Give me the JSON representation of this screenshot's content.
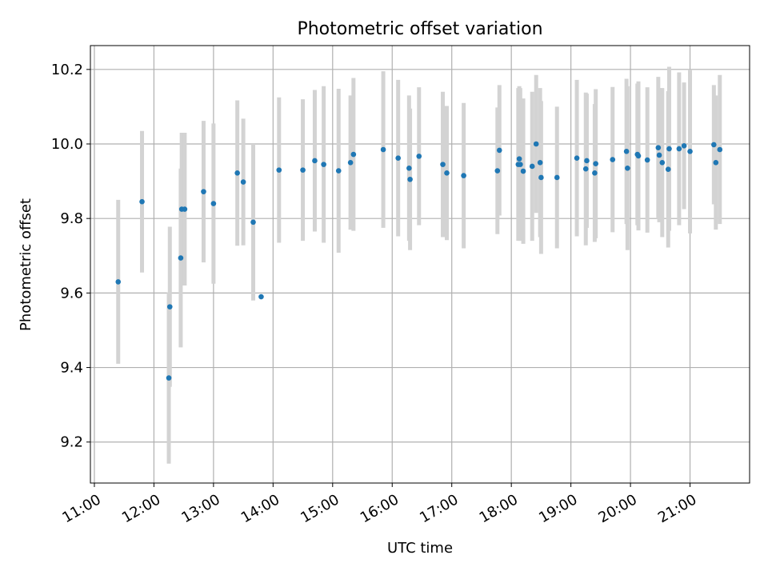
{
  "chart_data": {
    "type": "scatter",
    "title": "Photometric offset variation",
    "xlabel": "UTC time",
    "ylabel": "Photometric offset",
    "x_unit": "hours UTC",
    "xlim": [
      "10:56",
      "22:00"
    ],
    "ylim": [
      9.09,
      10.264
    ],
    "x_ticks": [
      "11:00",
      "12:00",
      "13:00",
      "14:00",
      "15:00",
      "16:00",
      "17:00",
      "18:00",
      "19:00",
      "20:00",
      "21:00"
    ],
    "y_ticks": [
      "9.2",
      "9.4",
      "9.6",
      "9.8",
      "10.0",
      "10.2"
    ],
    "grid": true,
    "legend": "none",
    "colors": {
      "points": "#1f77b4",
      "errorbars": "#d3d3d3",
      "grid": "#b0b0b0"
    },
    "series": [
      {
        "x": [
          "11:24",
          "11:48",
          "12:15",
          "12:16",
          "12:27",
          "12:28",
          "12:31",
          "12:50",
          "13:00",
          "13:24",
          "13:30",
          "13:40",
          "13:48",
          "14:06",
          "14:30",
          "14:42",
          "14:51",
          "15:06",
          "15:18",
          "15:21",
          "15:51",
          "16:06",
          "16:17",
          "16:18",
          "16:27",
          "16:51",
          "16:55",
          "17:12",
          "17:46",
          "17:48",
          "18:07",
          "18:08",
          "18:09",
          "18:12",
          "18:21",
          "18:25",
          "18:29",
          "18:30",
          "18:46",
          "19:06",
          "19:15",
          "19:16",
          "19:24",
          "19:25",
          "19:42",
          "19:56",
          "19:57",
          "20:07",
          "20:08",
          "20:17",
          "20:28",
          "20:29",
          "20:32",
          "20:38",
          "20:39",
          "20:49",
          "20:54",
          "21:00",
          "21:24",
          "21:26",
          "21:30"
        ],
        "y": [
          9.63,
          9.845,
          9.372,
          9.563,
          9.694,
          9.825,
          9.825,
          9.872,
          9.84,
          9.922,
          9.898,
          9.79,
          9.59,
          9.93,
          9.93,
          9.955,
          9.945,
          9.928,
          9.95,
          9.972,
          9.985,
          9.962,
          9.935,
          9.905,
          9.967,
          9.945,
          9.922,
          9.915,
          9.928,
          9.983,
          9.945,
          9.96,
          9.945,
          9.927,
          9.94,
          10.0,
          9.95,
          9.91,
          9.91,
          9.962,
          9.933,
          9.955,
          9.922,
          9.947,
          9.958,
          9.98,
          9.935,
          9.972,
          9.968,
          9.957,
          9.99,
          9.97,
          9.95,
          9.932,
          9.987,
          9.987,
          9.995,
          9.98,
          9.998,
          9.95,
          9.985
        ],
        "err": [
          0.22,
          0.19,
          0.23,
          0.215,
          0.24,
          0.205,
          0.205,
          0.19,
          0.215,
          0.195,
          0.17,
          0.21,
          0.0,
          0.195,
          0.19,
          0.19,
          0.21,
          0.22,
          0.18,
          0.205,
          0.21,
          0.21,
          0.195,
          0.19,
          0.185,
          0.195,
          0.18,
          0.195,
          0.17,
          0.175,
          0.205,
          0.195,
          0.205,
          0.195,
          0.2,
          0.185,
          0.2,
          0.205,
          0.19,
          0.21,
          0.205,
          0.18,
          0.185,
          0.2,
          0.195,
          0.195,
          0.22,
          0.19,
          0.2,
          0.195,
          0.19,
          0.18,
          0.2,
          0.21,
          0.22,
          0.205,
          0.17,
          0.22,
          0.16,
          0.18,
          0.2
        ]
      }
    ]
  }
}
